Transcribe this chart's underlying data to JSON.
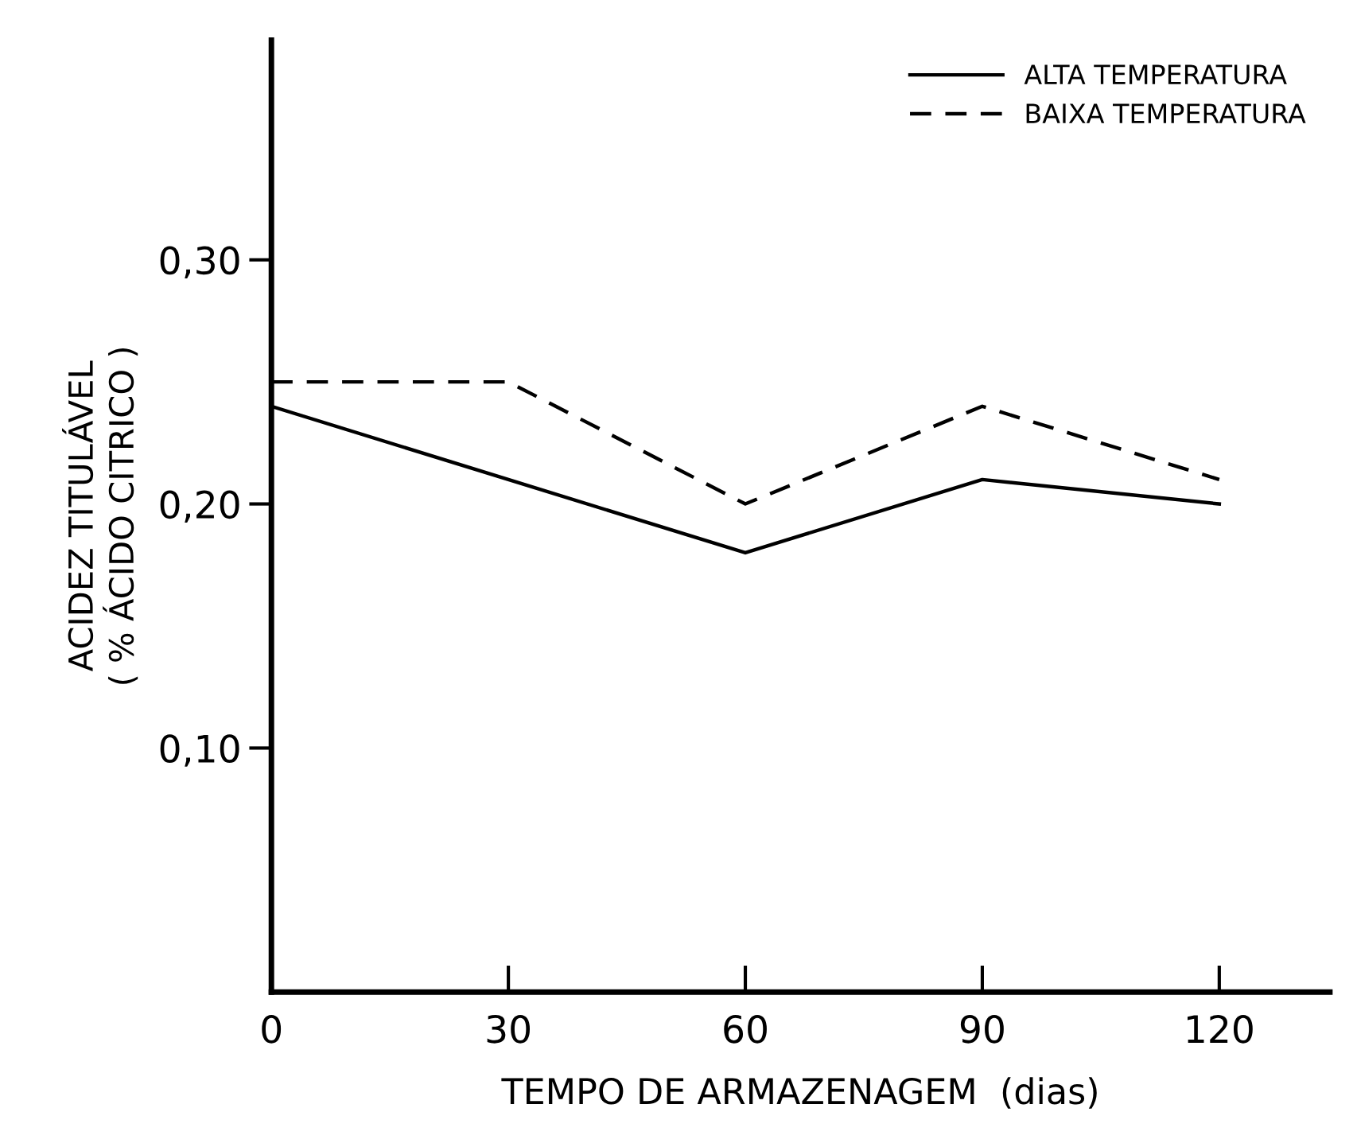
{
  "chart_data": {
    "type": "line",
    "x": [
      0,
      30,
      60,
      90,
      120
    ],
    "series": [
      {
        "name": "ALTA TEMPERATURA",
        "color": "#000000",
        "line_style": "solid",
        "values": [
          0.24,
          0.21,
          0.18,
          0.21,
          0.2
        ]
      },
      {
        "name": "BAIXA TEMPERATURA",
        "color": "#000000",
        "line_style": "dashed",
        "values": [
          0.25,
          0.25,
          0.2,
          0.24,
          0.21
        ]
      }
    ],
    "xlabel": "TEMPO DE ARMAZENAGEM  (dias)",
    "ylabel": "ACIDEZ TITULÁVEL\n( % ÁCIDO CITRICO )",
    "xlim": [
      0,
      134
    ],
    "ylim": [
      0,
      0.39
    ],
    "xticks": [
      0,
      30,
      60,
      90,
      120
    ],
    "yticks": [
      {
        "value": 0.1,
        "label": "0,10"
      },
      {
        "value": 0.2,
        "label": "0,20"
      },
      {
        "value": 0.3,
        "label": "0,30"
      }
    ],
    "grid": false,
    "legend": "top right",
    "marker": "none"
  }
}
